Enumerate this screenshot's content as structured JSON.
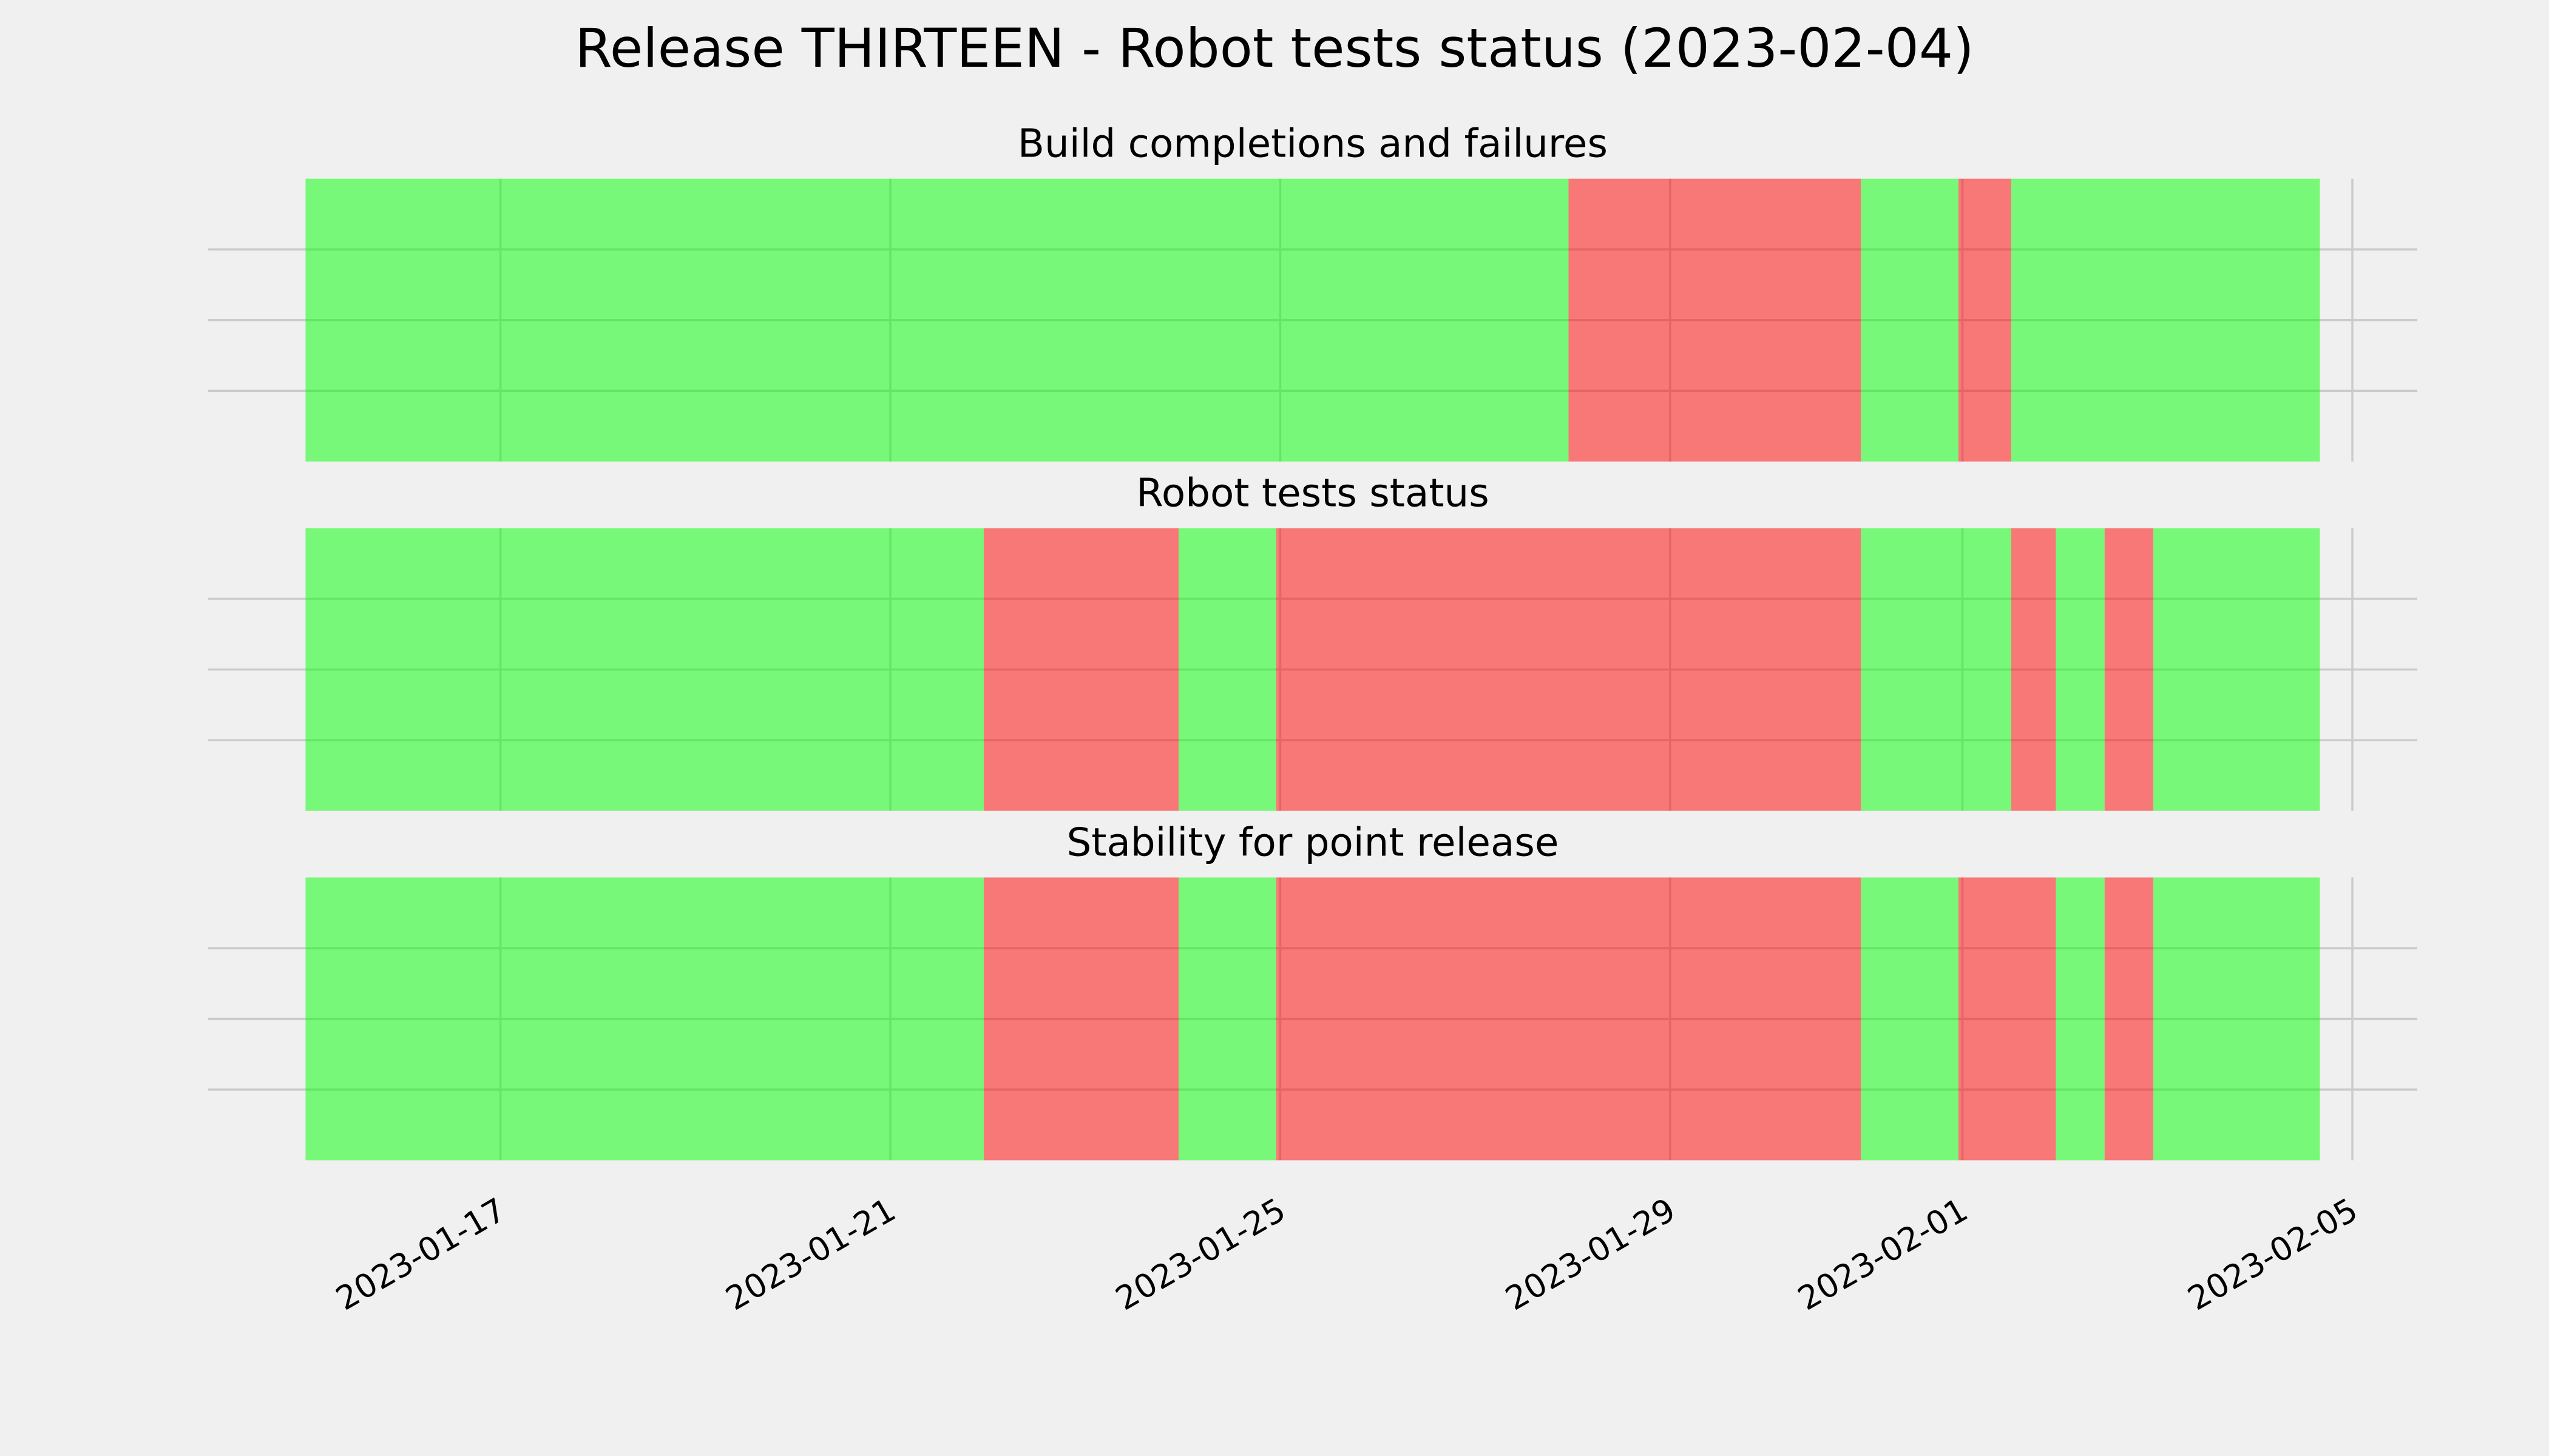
{
  "title": "Release THIRTEEN - Robot tests status (2023-02-04)",
  "chart_data": [
    {
      "type": "timeline",
      "title": "Build completions and failures",
      "xlim": [
        "2023-01-14 00:00",
        "2023-02-05 16:00"
      ],
      "xticks": [
        "2023-01-17",
        "2023-01-21",
        "2023-01-25",
        "2023-01-29",
        "2023-02-01",
        "2023-02-05"
      ],
      "ylim": [
        0,
        1
      ],
      "yticks": [
        0.25,
        0.5,
        0.75
      ],
      "ytick_labels": false,
      "grid": true,
      "alpha": 0.5,
      "segments": [
        {
          "start": "2023-01-15 00:00",
          "end": "2023-01-27 23:00",
          "color": "#00ff00"
        },
        {
          "start": "2023-01-27 23:00",
          "end": "2023-01-30 23:00",
          "color": "#ff0000"
        },
        {
          "start": "2023-01-30 23:00",
          "end": "2023-01-31 23:00",
          "color": "#00ff00"
        },
        {
          "start": "2023-01-31 23:00",
          "end": "2023-02-01 12:00",
          "color": "#ff0000"
        },
        {
          "start": "2023-02-01 12:00",
          "end": "2023-02-04 16:00",
          "color": "#00ff00"
        }
      ]
    },
    {
      "type": "timeline",
      "title": "Robot tests status",
      "xlim": [
        "2023-01-14 00:00",
        "2023-02-05 16:00"
      ],
      "xticks": [
        "2023-01-17",
        "2023-01-21",
        "2023-01-25",
        "2023-01-29",
        "2023-02-01",
        "2023-02-05"
      ],
      "ylim": [
        0,
        1
      ],
      "yticks": [
        0.25,
        0.5,
        0.75
      ],
      "ytick_labels": false,
      "grid": true,
      "alpha": 0.5,
      "segments": [
        {
          "start": "2023-01-15 00:00",
          "end": "2023-01-21 23:00",
          "color": "#00ff00"
        },
        {
          "start": "2023-01-21 23:00",
          "end": "2023-01-23 23:00",
          "color": "#ff0000"
        },
        {
          "start": "2023-01-23 23:00",
          "end": "2023-01-24 23:00",
          "color": "#00ff00"
        },
        {
          "start": "2023-01-24 23:00",
          "end": "2023-01-30 23:00",
          "color": "#ff0000"
        },
        {
          "start": "2023-01-30 23:00",
          "end": "2023-02-01 12:00",
          "color": "#00ff00"
        },
        {
          "start": "2023-02-01 12:00",
          "end": "2023-02-01 23:00",
          "color": "#ff0000"
        },
        {
          "start": "2023-02-01 23:00",
          "end": "2023-02-02 11:00",
          "color": "#00ff00"
        },
        {
          "start": "2023-02-02 11:00",
          "end": "2023-02-02 23:00",
          "color": "#ff0000"
        },
        {
          "start": "2023-02-02 23:00",
          "end": "2023-02-04 16:00",
          "color": "#00ff00"
        }
      ]
    },
    {
      "type": "timeline",
      "title": "Stability for point release",
      "xlim": [
        "2023-01-14 00:00",
        "2023-02-05 16:00"
      ],
      "xticks": [
        "2023-01-17",
        "2023-01-21",
        "2023-01-25",
        "2023-01-29",
        "2023-02-01",
        "2023-02-05"
      ],
      "ylim": [
        0,
        1
      ],
      "yticks": [
        0.25,
        0.5,
        0.75
      ],
      "ytick_labels": false,
      "grid": true,
      "alpha": 0.5,
      "segments": [
        {
          "start": "2023-01-15 00:00",
          "end": "2023-01-21 23:00",
          "color": "#00ff00"
        },
        {
          "start": "2023-01-21 23:00",
          "end": "2023-01-23 23:00",
          "color": "#ff0000"
        },
        {
          "start": "2023-01-23 23:00",
          "end": "2023-01-24 23:00",
          "color": "#00ff00"
        },
        {
          "start": "2023-01-24 23:00",
          "end": "2023-01-30 23:00",
          "color": "#ff0000"
        },
        {
          "start": "2023-01-30 23:00",
          "end": "2023-01-31 23:00",
          "color": "#00ff00"
        },
        {
          "start": "2023-01-31 23:00",
          "end": "2023-02-01 23:00",
          "color": "#ff0000"
        },
        {
          "start": "2023-02-01 23:00",
          "end": "2023-02-02 11:00",
          "color": "#00ff00"
        },
        {
          "start": "2023-02-02 11:00",
          "end": "2023-02-02 23:00",
          "color": "#ff0000"
        },
        {
          "start": "2023-02-02 23:00",
          "end": "2023-02-04 16:00",
          "color": "#00ff00"
        }
      ]
    }
  ]
}
